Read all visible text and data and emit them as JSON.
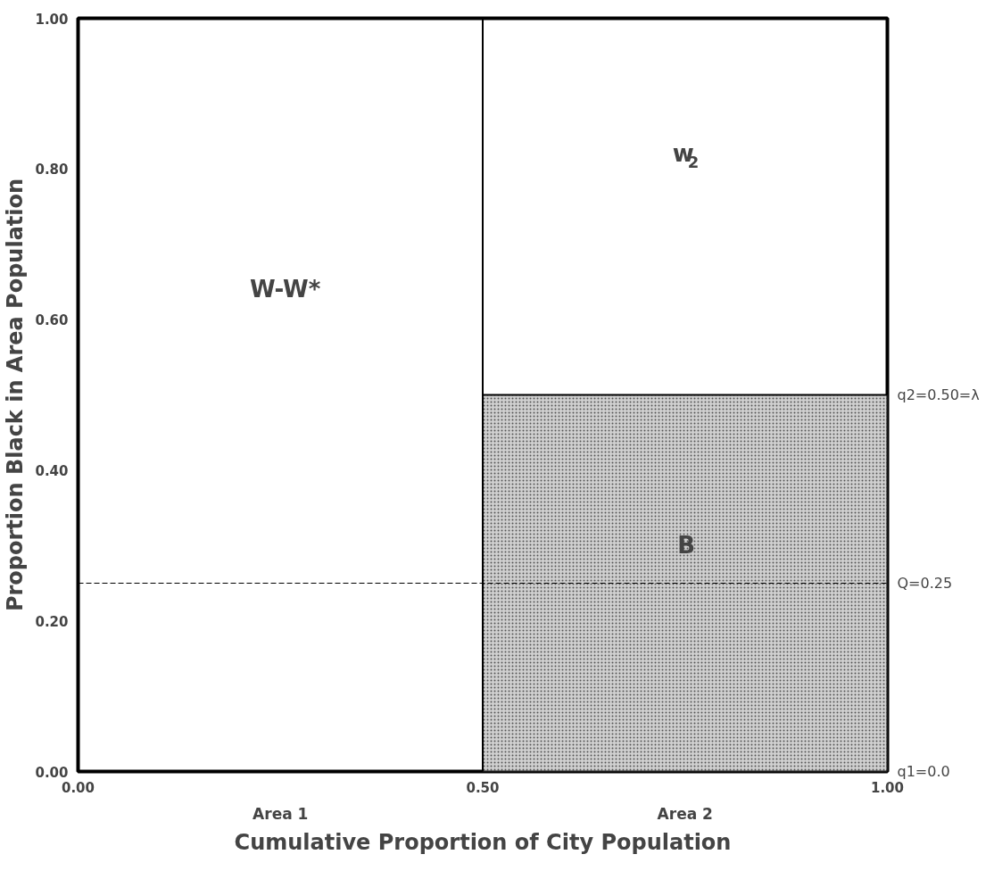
{
  "chart_data": {
    "type": "bar",
    "xlabel": "Cumulative Proportion of City Population",
    "ylabel": "Proportion Black in Area Population",
    "x": [
      0.25,
      0.75
    ],
    "values": [
      0.0,
      0.5
    ],
    "color": "#d0d0d0",
    "xlim": [
      0,
      1
    ],
    "ylim": [
      0,
      1
    ],
    "xticks": [
      {
        "value": 0,
        "label": "0.00"
      },
      {
        "value": 0.5,
        "label": "0.50"
      },
      {
        "value": 1,
        "label": "1.00"
      }
    ],
    "yticks": [
      {
        "value": 0,
        "label": "0.00"
      },
      {
        "value": 0.2,
        "label": "0.20"
      },
      {
        "value": 0.4,
        "label": "0.40"
      },
      {
        "value": 0.6,
        "label": "0.60"
      },
      {
        "value": 0.8,
        "label": "0.80"
      },
      {
        "value": 1,
        "label": "1.00"
      }
    ],
    "grid": false,
    "ref_lines": [
      {
        "axis": "x",
        "value": 0.5,
        "line_style": "solid",
        "color": "#000000"
      },
      {
        "axis": "y",
        "value": 0.25,
        "label": "Q=0.25",
        "line_style": "dashed",
        "color": "#000000"
      }
    ],
    "annotations": [
      "W-W*",
      "w$_{2}$",
      "B",
      "Area 1",
      "Area 2",
      {
        "text": "q1=0.0",
        "x": 1.0,
        "y": 0.0
      },
      {
        "text": "q2=0.50=λ",
        "x": 1.0,
        "y": 0.5
      }
    ]
  }
}
